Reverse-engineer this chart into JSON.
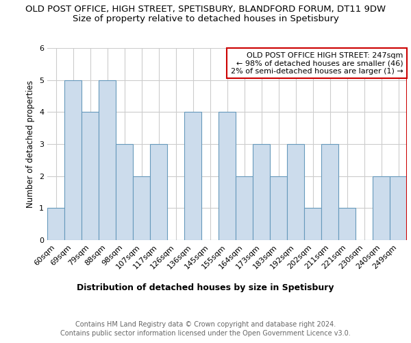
{
  "title1": "OLD POST OFFICE, HIGH STREET, SPETISBURY, BLANDFORD FORUM, DT11 9DW",
  "title2": "Size of property relative to detached houses in Spetisbury",
  "xlabel": "Distribution of detached houses by size in Spetisbury",
  "ylabel": "Number of detached properties",
  "categories": [
    "60sqm",
    "69sqm",
    "79sqm",
    "88sqm",
    "98sqm",
    "107sqm",
    "117sqm",
    "126sqm",
    "136sqm",
    "145sqm",
    "155sqm",
    "164sqm",
    "173sqm",
    "183sqm",
    "192sqm",
    "202sqm",
    "211sqm",
    "221sqm",
    "230sqm",
    "240sqm",
    "249sqm"
  ],
  "values": [
    1,
    5,
    4,
    5,
    3,
    2,
    3,
    0,
    4,
    0,
    4,
    2,
    3,
    2,
    3,
    1,
    3,
    1,
    0,
    2,
    2
  ],
  "bar_color": "#ccdcec",
  "bar_edge_color": "#6699bb",
  "ylim": [
    0,
    6
  ],
  "yticks": [
    0,
    1,
    2,
    3,
    4,
    5,
    6
  ],
  "annotation_title": "OLD POST OFFICE HIGH STREET: 247sqm",
  "annotation_line1": "← 98% of detached houses are smaller (46)",
  "annotation_line2": "2% of semi-detached houses are larger (1) →",
  "annotation_box_color": "#ffffff",
  "annotation_box_edge": "#cc0000",
  "red_line_color": "#cc0000",
  "footer1": "Contains HM Land Registry data © Crown copyright and database right 2024.",
  "footer2": "Contains public sector information licensed under the Open Government Licence v3.0.",
  "grid_color": "#cccccc",
  "title1_fontsize": 9.5,
  "title2_fontsize": 9.5,
  "xlabel_fontsize": 9,
  "ylabel_fontsize": 8.5,
  "tick_fontsize": 8,
  "annotation_fontsize": 8,
  "footer_fontsize": 7
}
